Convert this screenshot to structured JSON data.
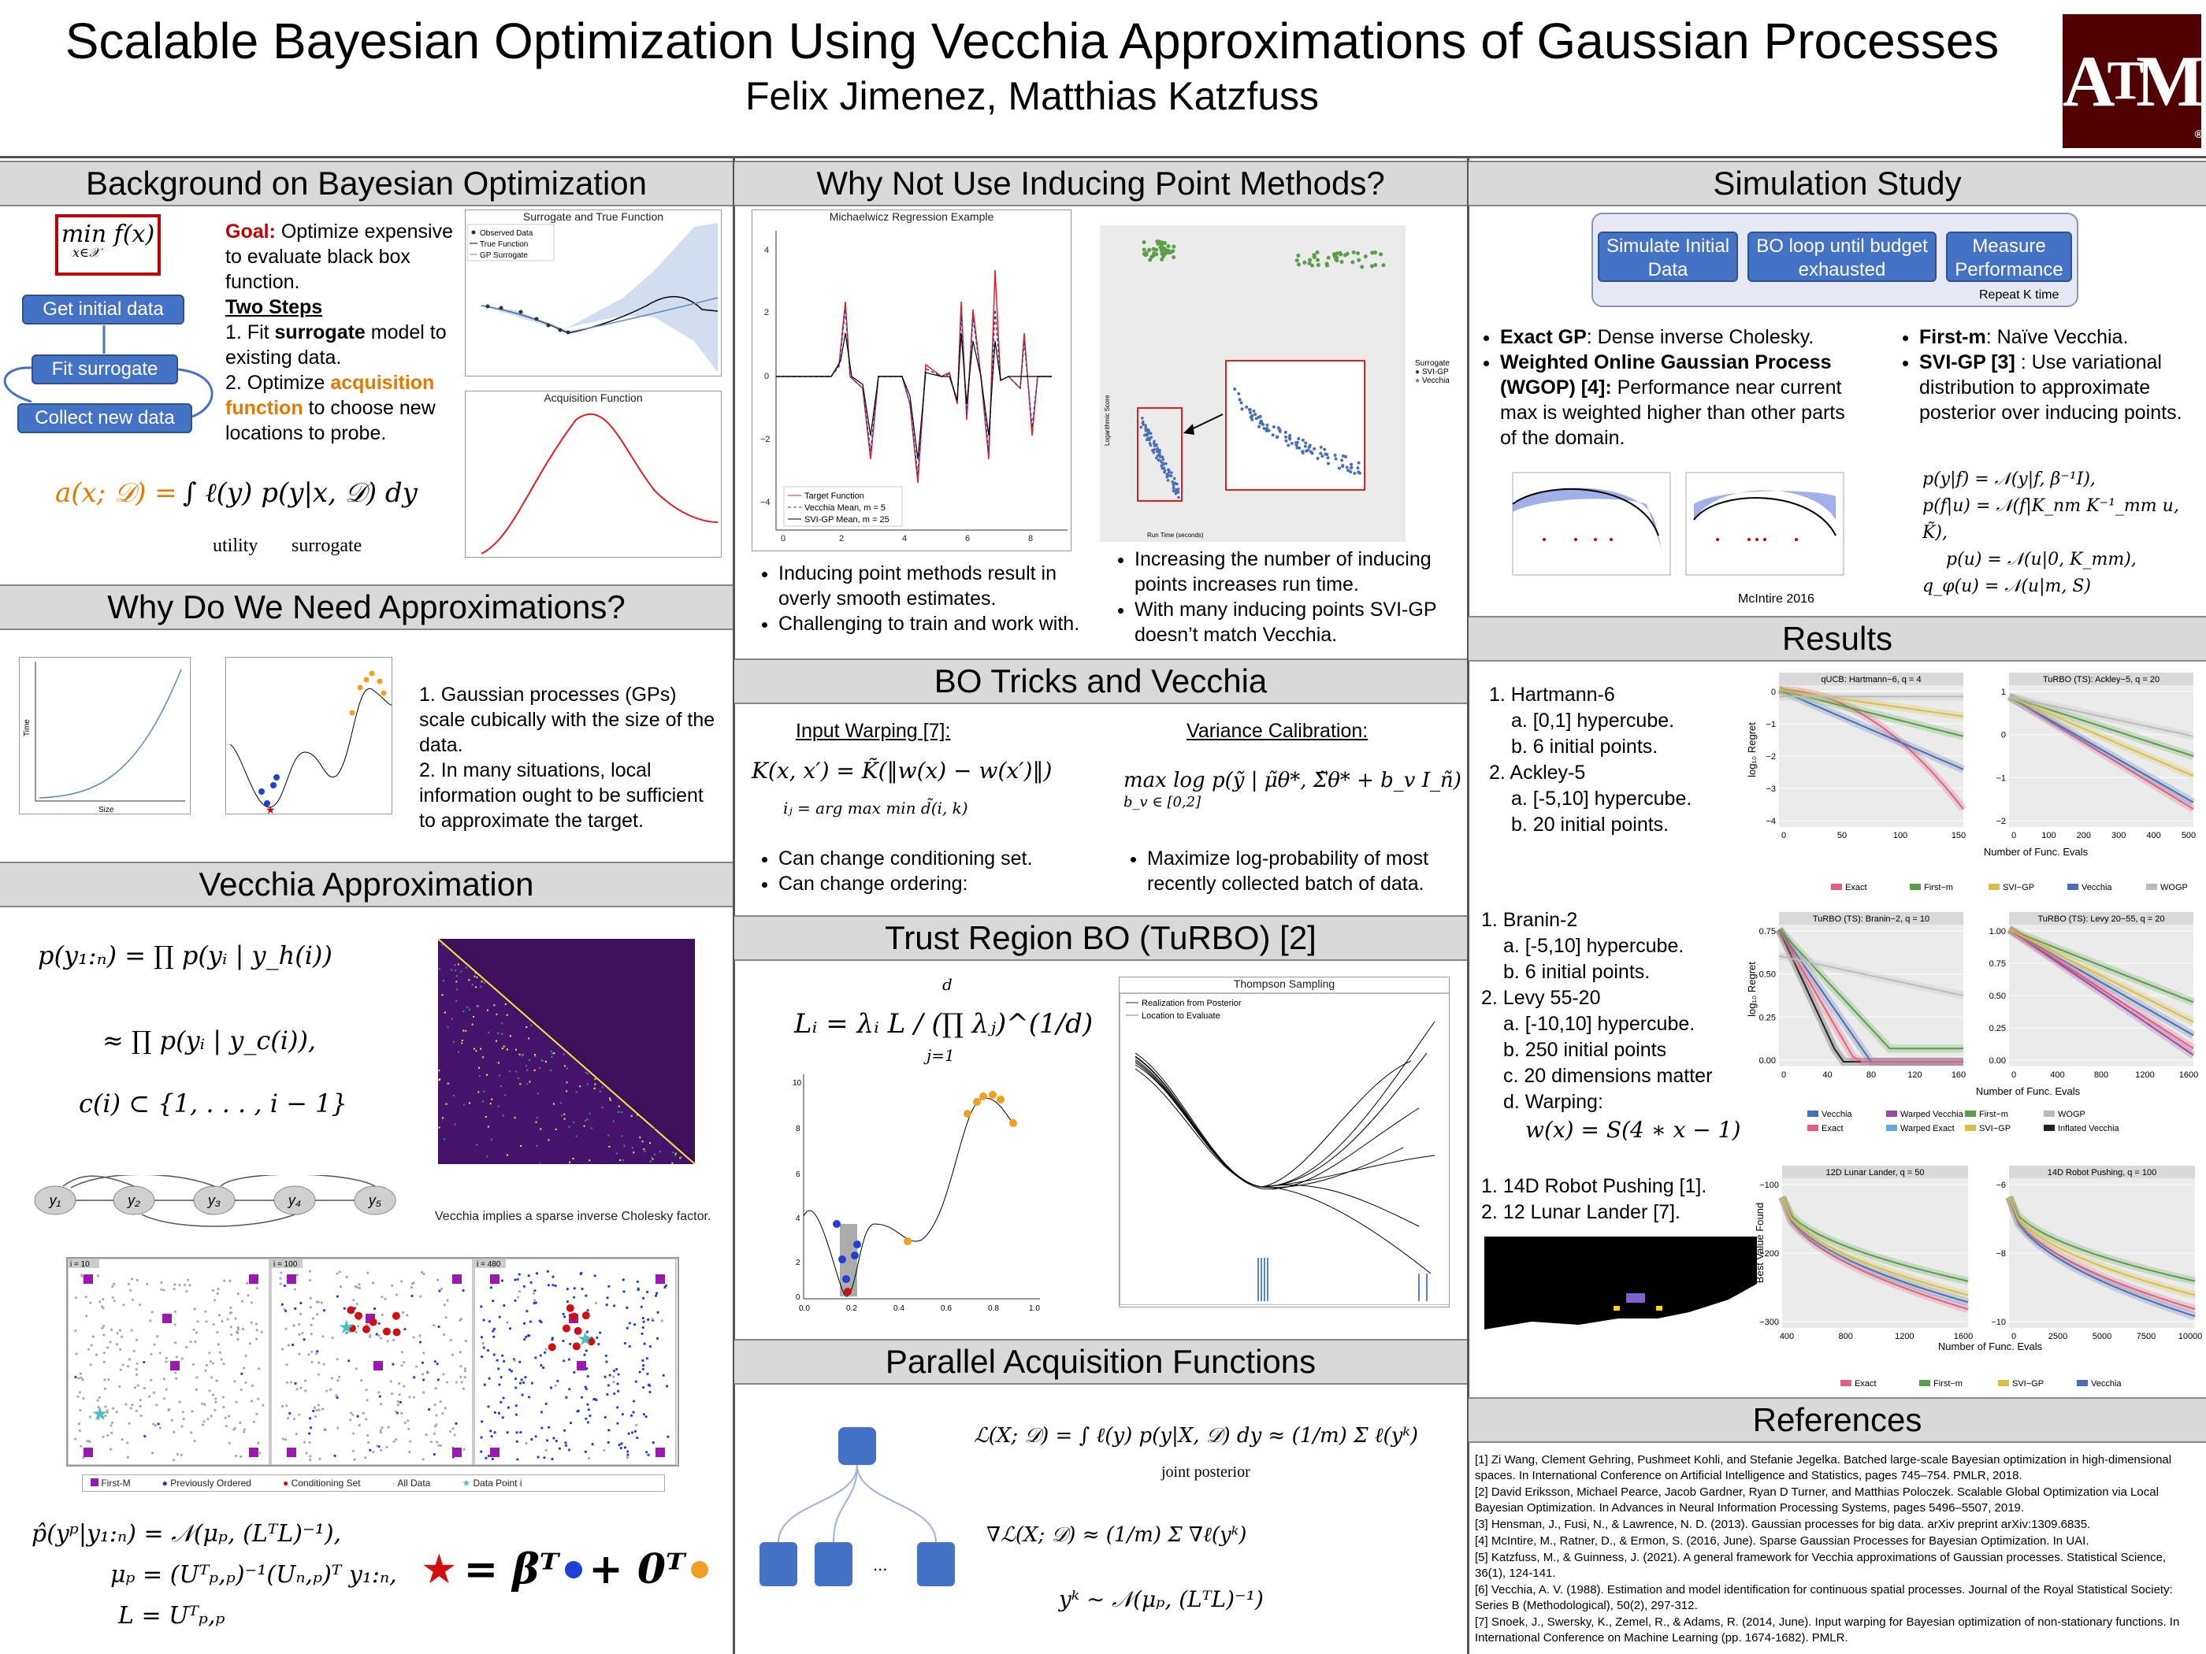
{
  "header": {
    "title": "Scalable Bayesian Optimization Using Vecchia Approximations of Gaussian Processes",
    "authors": "Felix Jimenez, Matthias Katzfuss",
    "logo_text": "ATM"
  },
  "sections": {
    "background": "Background on Bayesian Optimization",
    "approx": "Why Do We Need Approximations?",
    "vecchia": "Vecchia Approximation",
    "inducing": "Why Not Use Inducing Point Methods?",
    "tricks": "BO Tricks and Vecchia",
    "turbo": "Trust Region BO (TuRBO) [2]",
    "parallel": "Parallel Acquisition Functions",
    "simulation": "Simulation Study",
    "results": "Results",
    "references": "References"
  },
  "background": {
    "objective": "min f(x)",
    "objective_sub": "x∈𝒳",
    "flow": [
      "Get initial data",
      "Fit surrogate",
      "Collect new data"
    ],
    "goal_label": "Goal:",
    "goal_text": "Optimize expensive to evaluate black box function.",
    "two_steps": "Two Steps",
    "step1_a": "1. Fit ",
    "step1_b": "surrogate",
    "step1_c": " model to existing data.",
    "step2_a": "2. Optimize ",
    "step2_b": "acquisition function",
    "step2_c": " to choose new locations to probe.",
    "fig1_title": "Surrogate and True Function",
    "fig1_legend": [
      "Observed Data",
      "True Function",
      "GP Surrogate"
    ],
    "fig2_title": "Acquisition Function",
    "acq_eq_left": "a(x; 𝒟) =",
    "acq_eq_right": "∫ ℓ(y) p(y|x, 𝒟) dy",
    "acq_utility": "utility",
    "acq_surrogate": "surrogate"
  },
  "approx": {
    "xlabel": "Size",
    "ylabel": "Time",
    "point1": "1. Gaussian processes (GPs) scale cubically with the size of the data.",
    "point2": "2. In many situations, local information ought to be sufficient to approximate the target."
  },
  "vecchia": {
    "eq1": "p(y₁:ₙ) = ∏ p(yᵢ | y_h(i))",
    "eq2": "≈ ∏ p(yᵢ | y_c(i)),",
    "eq3": "c(i) ⊂ {1, . . . , i − 1}",
    "nodes": [
      "y₁",
      "y₂",
      "y₃",
      "y₄",
      "y₅"
    ],
    "sparse_caption": "Vecchia implies a sparse inverse Cholesky factor.",
    "panels": [
      "i = 10",
      "i = 100",
      "i = 480"
    ],
    "legend": [
      "First-M",
      "Previously Ordered",
      "Conditioning Set",
      "All Data",
      "Data Point i"
    ],
    "post_eq1": "p̂(yᵖ|y₁:ₙ) = 𝒩(μₚ, (LᵀL)⁻¹),",
    "post_eq2": "μₚ = (Uᵀₚ,ₚ)⁻¹(Uₙ,ₚ)ᵀ y₁:ₙ,",
    "post_eq3": "L = Uᵀₚ,ₚ",
    "star_eq": "= βᵀ",
    "star_eq2": "+ 0ᵀ"
  },
  "inducing": {
    "fig_title": "Michaelwicz Regression Example",
    "fig_legend": [
      "Target Function",
      "Vecchia Mean, m = 5",
      "SVI-GP Mean, m = 25"
    ],
    "scatter_ylabel": "Logarithmic Score",
    "scatter_xlabel": "Run Time (seconds)",
    "scatter_legend_title": "Surrogate",
    "scatter_legend": [
      "SVI-GP",
      "Vecchia"
    ],
    "bullets_left": [
      "Inducing point methods result in overly smooth estimates.",
      "Challenging to train and work with."
    ],
    "bullets_right": [
      "Increasing the number of inducing points increases run time.",
      "With many inducing points SVI-GP doesn’t match Vecchia."
    ]
  },
  "tricks": {
    "warp_title": "Input Warping [7]:",
    "warp_eq": "K(x, x′) = K̃(‖w(x) − w(x′)‖)",
    "warp_eq2": "iⱼ = arg max  min  d̃(i, k)",
    "warp_bullets": [
      "Can change conditioning set.",
      "Can change ordering:"
    ],
    "var_title": "Variance Calibration:",
    "var_eq": "max  log p(ỹ | μ̃θ*, Σ̃θ* + b_v I_ñ)",
    "var_sub": "b_v ∈ [0,2]",
    "var_bullets": [
      "Maximize log-probability of most recently collected batch of data."
    ]
  },
  "turbo": {
    "eq": "Lᵢ = λᵢ L / (∏ λⱼ)^(1/d)",
    "eq_top": "d",
    "eq_bottom": "j=1",
    "ts_title": "Thompson Sampling",
    "ts_legend": [
      "Realization from Posterior",
      "Location to Evaluate"
    ]
  },
  "parallel": {
    "eq1": "ℒ(X; 𝒟) = ∫ ℓ(y) p(y|X, 𝒟) dy ≈ (1/m) Σ ℓ(yᵏ)",
    "eq1_label": "joint posterior",
    "eq2": "∇ℒ(X; 𝒟) ≈ (1/m) Σ ∇ℓ(yᵏ)",
    "eq3": "yᵏ ∼ 𝒩(μₚ, (LᵀL)⁻¹)",
    "dots": "..."
  },
  "simulation": {
    "flow": [
      "Simulate Initial Data",
      "BO loop until budget exhausted",
      "Measure Performance"
    ],
    "repeat": "Repeat K time",
    "left_items": [
      {
        "bold": "Exact GP",
        "text": ": Dense inverse Cholesky."
      },
      {
        "bold": "Weighted Online Gaussian Process (WGOP) [4]:",
        "text": " Performance near current max is weighted higher than other parts of the domain."
      }
    ],
    "right_items": [
      {
        "bold": "First-m",
        "text": ": Naïve Vecchia."
      },
      {
        "bold": "SVI-GP [3]",
        "text": " : Use variational distribution to approximate posterior over inducing points."
      }
    ],
    "svi_eqs": [
      "p(y|f) = 𝒩(y|f, β⁻¹I),",
      "p(f|u) = 𝒩(f|K_nm K⁻¹_mm u, K̃),",
      "p(u) = 𝒩(u|0, K_mm),",
      "q_φ(u) = 𝒩(u|m, S)"
    ],
    "mcintire": "McIntire 2016"
  },
  "results": {
    "block1": [
      "1. Hartmann-6",
      "a. [0,1] hypercube.",
      "b. 6 initial points.",
      "2.  Ackley-5",
      "a. [-5,10] hypercube.",
      "b. 20 initial points."
    ],
    "block2": [
      "1. Branin-2",
      "a. [-5,10] hypercube.",
      "b. 6 initial points.",
      "2. Levy 55-20",
      "a. [-10,10] hypercube.",
      "b. 250 initial points",
      "c. 20 dimensions matter",
      "d. Warping:"
    ],
    "warp_eq": "w(x) = S(4 ∗ x − 1)",
    "block3": [
      "1. 14D Robot Pushing [1].",
      "2. 12 Lunar Lander [7]."
    ],
    "regret_label": "log₁₀ Regret",
    "best_label": "Best Value Found",
    "xlabel": "Number of Func. Evals",
    "charts": [
      {
        "title": "qUCB: Hartmann−6, q = 4",
        "ticks_x": [
          "0",
          "50",
          "100",
          "150"
        ],
        "ticks_y": [
          "0",
          "−1",
          "−2",
          "−3",
          "−4"
        ]
      },
      {
        "title": "TuRBO (TS): Ackley−5, q = 20",
        "ticks_x": [
          "0",
          "100",
          "200",
          "300",
          "400",
          "500"
        ],
        "ticks_y": [
          "1",
          "0",
          "−1",
          "−2"
        ]
      },
      {
        "title": "TuRBO (TS): Branin−2, q = 10",
        "ticks_x": [
          "0",
          "40",
          "80",
          "120",
          "160"
        ],
        "ticks_y": [
          "0.75",
          "0.50",
          "0.25",
          "0.00"
        ]
      },
      {
        "title": "TuRBO (TS): Levy 20−55, q = 20",
        "ticks_x": [
          "0",
          "400",
          "800",
          "1200",
          "1600"
        ],
        "ticks_y": [
          "1.00",
          "0.75",
          "0.50",
          "0.25",
          "0.00"
        ]
      },
      {
        "title": "12D Lunar Lander, q = 50",
        "ticks_x": [
          "400",
          "800",
          "1200",
          "1600"
        ],
        "ticks_y": [
          "−100",
          "−200",
          "−300"
        ]
      },
      {
        "title": "14D Robot Pushing, q = 100",
        "ticks_x": [
          "0",
          "2500",
          "5000",
          "7500",
          "10000"
        ],
        "ticks_y": [
          "−6",
          "−8",
          "−10"
        ]
      }
    ],
    "legend1": [
      "Exact",
      "First−m",
      "SVI−GP",
      "Vecchia",
      "WOGP"
    ],
    "legend2": [
      "Vecchia",
      "Warped Vecchia",
      "First−m",
      "WOGP",
      "Exact",
      "Warped Exact",
      "SVI−GP",
      "Inflated Vecchia"
    ],
    "legend3": [
      "Exact",
      "First−m",
      "SVI−GP",
      "Vecchia"
    ],
    "colors": {
      "exact": "#e0607e",
      "firstm": "#5a9e4b",
      "svigp": "#d6c04a",
      "vecchia": "#4a6fb5",
      "wogp": "#bbbbbb",
      "warped_vecchia": "#9a4aa0",
      "warped_exact": "#6aa6d8",
      "inflated": "#222222"
    }
  },
  "references": [
    "[1] Zi Wang, Clement Gehring, Pushmeet Kohli, and Stefanie Jegelka. Batched large-scale Bayesian optimization in high-dimensional spaces. In International Conference on Artificial Intelligence and Statistics, pages 745–754. PMLR, 2018.",
    "[2] David Eriksson, Michael Pearce, Jacob Gardner, Ryan D Turner, and Matthias Poloczek. Scalable Global Optimization via Local Bayesian Optimization. In Advances in Neural Information Processing Systems, pages 5496–5507, 2019.",
    "[3] Hensman, J., Fusi, N., & Lawrence, N. D. (2013). Gaussian processes for big data. arXiv preprint arXiv:1309.6835.",
    "[4] McIntire, M., Ratner, D., & Ermon, S. (2016, June). Sparse Gaussian Processes for Bayesian Optimization. In UAI.",
    "[5] Katzfuss, M., & Guinness, J. (2021). A general framework for Vecchia approximations of Gaussian processes. Statistical Science, 36(1), 124-141.",
    "[6] Vecchia, A. V. (1988). Estimation and model identification for continuous spatial processes. Journal of the Royal Statistical Society: Series B (Methodological), 50(2), 297-312.",
    "[7] Snoek, J., Swersky, K., Zemel, R., & Adams, R. (2014, June). Input warping for Bayesian optimization of non-stationary functions. In International Conference on Machine Learning (pp. 1674-1682). PMLR."
  ]
}
